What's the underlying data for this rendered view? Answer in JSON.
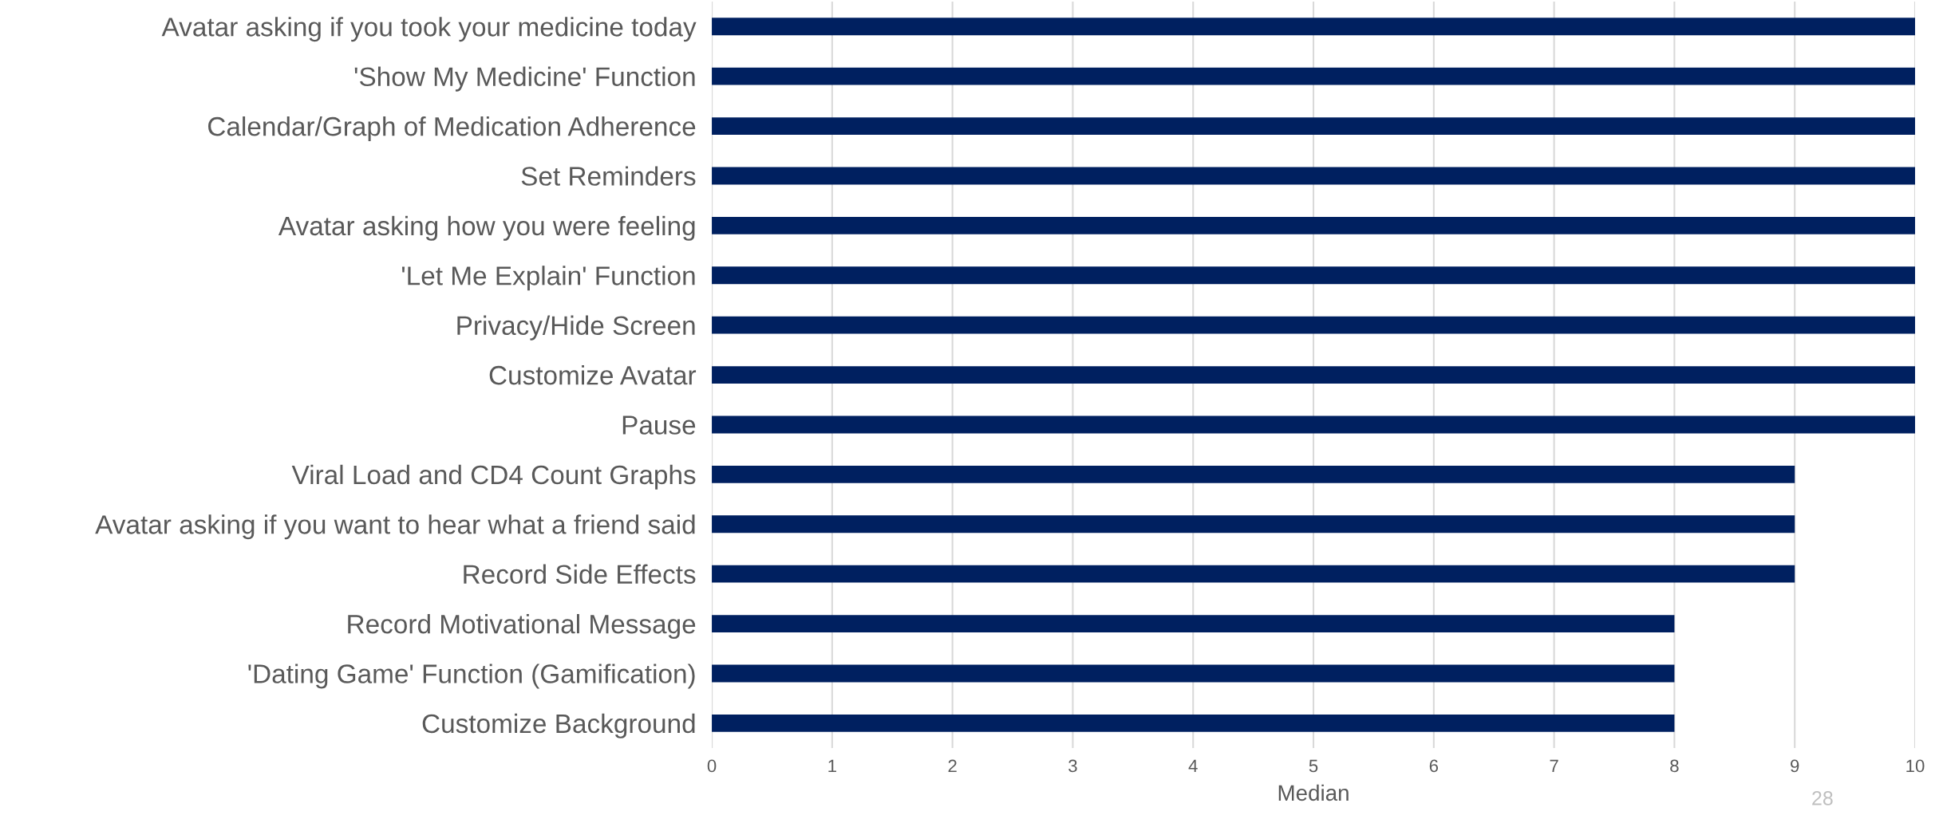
{
  "chart_data": {
    "type": "bar",
    "orientation": "horizontal",
    "xlabel": "Median",
    "categories": [
      "Avatar asking if you took your medicine today",
      "'Show My Medicine' Function",
      "Calendar/Graph of Medication Adherence",
      "Set Reminders",
      "Avatar asking how you were feeling",
      "'Let Me Explain' Function",
      "Privacy/Hide Screen",
      "Customize Avatar",
      "Pause",
      "Viral Load and CD4 Count Graphs",
      "Avatar asking if you want to hear what a friend said",
      "Record Side Effects",
      "Record Motivational Message",
      "'Dating Game' Function (Gamification)",
      "Customize Background"
    ],
    "values": [
      10,
      10,
      10,
      10,
      10,
      10,
      10,
      10,
      10,
      9,
      9,
      9,
      8,
      8,
      8
    ],
    "color": "#002060",
    "xlim": [
      0,
      10
    ],
    "xticks": [
      0,
      1,
      2,
      3,
      4,
      5,
      6,
      7,
      8,
      9,
      10
    ],
    "grid": "x",
    "legend": false,
    "annotations": [
      "28"
    ]
  }
}
